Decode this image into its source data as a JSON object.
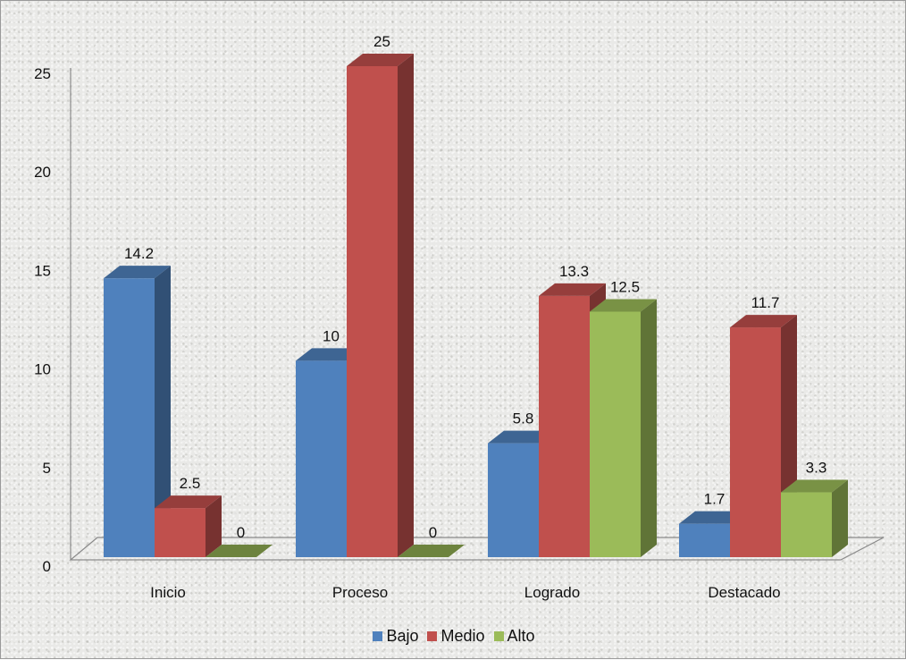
{
  "chart_data": {
    "type": "bar",
    "categories": [
      "Inicio",
      "Proceso",
      "Logrado",
      "Destacado"
    ],
    "series": [
      {
        "name": "Bajo",
        "values": [
          14.2,
          10,
          5.8,
          1.7
        ],
        "color": "#4f81bd"
      },
      {
        "name": "Medio",
        "values": [
          2.5,
          25,
          13.3,
          11.7
        ],
        "color": "#c0504d"
      },
      {
        "name": "Alto",
        "values": [
          0,
          0,
          12.5,
          3.3
        ],
        "color": "#9bbb59"
      }
    ],
    "data_labels": [
      [
        "14.2",
        "2.5",
        "0"
      ],
      [
        "10",
        "25",
        "0"
      ],
      [
        "5.8",
        "13.3",
        "12.5"
      ],
      [
        "1.7",
        "11.7",
        "3.3"
      ]
    ],
    "ylim": [
      0,
      25
    ],
    "yticks": [
      "0",
      "5",
      "10",
      "15",
      "20",
      "25"
    ],
    "legend_position": "bottom",
    "grid": false
  }
}
